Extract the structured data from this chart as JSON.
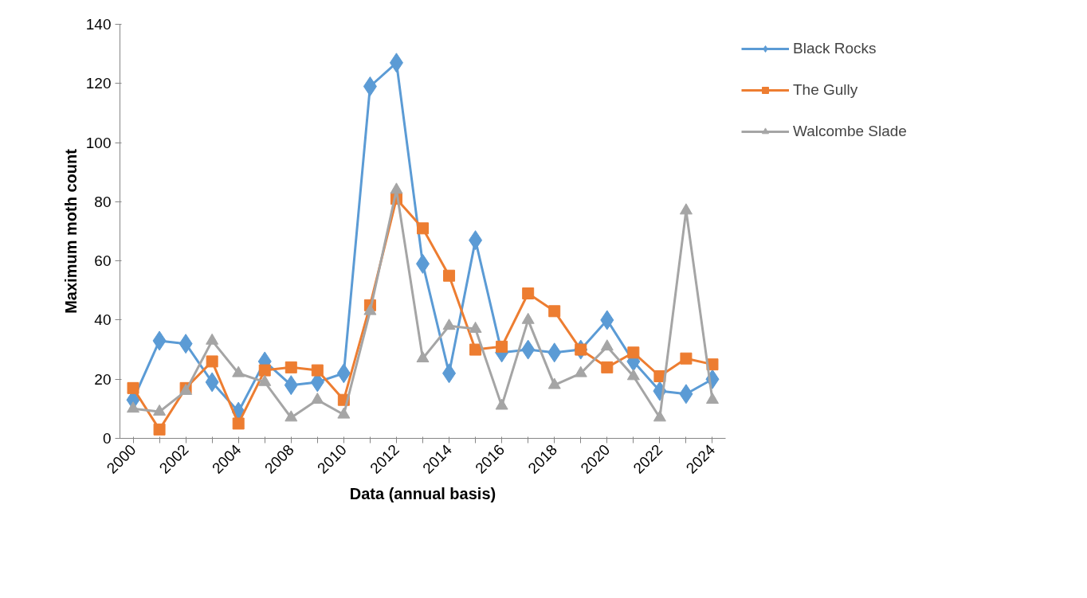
{
  "chart_data": {
    "type": "line",
    "xlabel": "Data (annual basis)",
    "ylabel": "Maximum moth count",
    "categories": [
      "2000",
      null,
      "2002",
      null,
      "2004",
      null,
      "2008",
      null,
      "2010",
      null,
      "2012",
      null,
      "2014",
      null,
      "2016",
      null,
      "2018",
      null,
      "2020",
      null,
      "2022",
      null,
      "2024"
    ],
    "series": [
      {
        "name": "Black Rocks",
        "color": "#5b9bd5",
        "marker": "diamond",
        "values": [
          13,
          33,
          32,
          19,
          9,
          26,
          18,
          19,
          22,
          119,
          127,
          59,
          22,
          67,
          29,
          30,
          29,
          30,
          40,
          26,
          16,
          15,
          20
        ]
      },
      {
        "name": "The Gully",
        "color": "#ed7d31",
        "marker": "square",
        "values": [
          17,
          3,
          17,
          26,
          5,
          23,
          24,
          23,
          13,
          45,
          81,
          71,
          55,
          30,
          31,
          49,
          43,
          30,
          24,
          29,
          21,
          27,
          25
        ]
      },
      {
        "name": "Walcombe Slade",
        "color": "#a5a5a5",
        "marker": "triangle",
        "values": [
          10,
          9,
          16,
          33,
          22,
          19,
          7,
          13,
          8,
          43,
          84,
          27,
          38,
          37,
          11,
          40,
          18,
          22,
          31,
          21,
          7,
          77,
          13
        ]
      }
    ],
    "ylim": [
      0,
      140
    ],
    "yticks": [
      0,
      20,
      40,
      60,
      80,
      100,
      120,
      140
    ],
    "grid": false,
    "legend": "right",
    "line_style": "solid"
  }
}
